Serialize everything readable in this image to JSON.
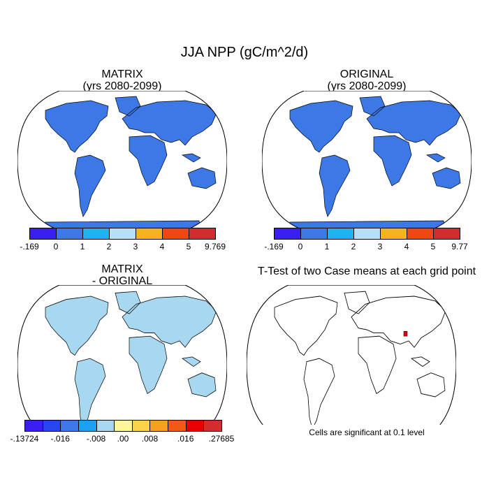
{
  "title": "JJA NPP (gC/m^2/d)",
  "panels": [
    {
      "id": "matrix",
      "title_line1": "MATRIX",
      "title_line2": "(yrs 2080-2099)"
    },
    {
      "id": "original",
      "title_line1": "ORIGINAL",
      "title_line2": "(yrs 2080-2099)"
    },
    {
      "id": "diff",
      "title_line1": "MATRIX",
      "title_line2": "- ORIGINAL"
    },
    {
      "id": "ttest",
      "title_line1": "T-Test of two Case means at each grid point",
      "title_line2": ""
    }
  ],
  "colorbars": {
    "matrix": {
      "colors": [
        "#3b1ff2",
        "#3c78e6",
        "#1eb4f0",
        "#b4e1f5",
        "#f5b41e",
        "#f04614",
        "#d22d2d"
      ],
      "labels": [
        "-.169",
        "0",
        "1",
        "2",
        "3",
        "4",
        "5",
        "9.769"
      ]
    },
    "original": {
      "colors": [
        "#3b1ff2",
        "#3c78e6",
        "#1eb4f0",
        "#b4e1f5",
        "#f5b41e",
        "#f04614",
        "#d22d2d"
      ],
      "labels": [
        "-.169",
        "0",
        "1",
        "2",
        "3",
        "4",
        "5",
        "9.77"
      ]
    },
    "diff": {
      "colors": [
        "#3b1ff2",
        "#2846f0",
        "#3c78e6",
        "#1ea0f0",
        "#a8d8f0",
        "#fff796",
        "#fad24b",
        "#f5a01e",
        "#f05a14",
        "#e60000",
        "#d22d2d"
      ],
      "labels": [
        "-.13724",
        "-.016",
        "-.008",
        ".00",
        ".008",
        ".016",
        ".27685"
      ]
    }
  },
  "significance_note": "Cells are significant at 0.1 level",
  "map_colors": {
    "land_high": "#f04614",
    "land_mid": "#f5b41e",
    "land_low": "#3c78e6",
    "land_light": "#b4e1f5",
    "land_cyan": "#1eb4f0",
    "land_dark": "#d22d2d",
    "diff_base": "#a8d8f0",
    "diff_pos": "#fff796",
    "diff_neg": "#2846f0",
    "significant_cell": "#e60000"
  }
}
